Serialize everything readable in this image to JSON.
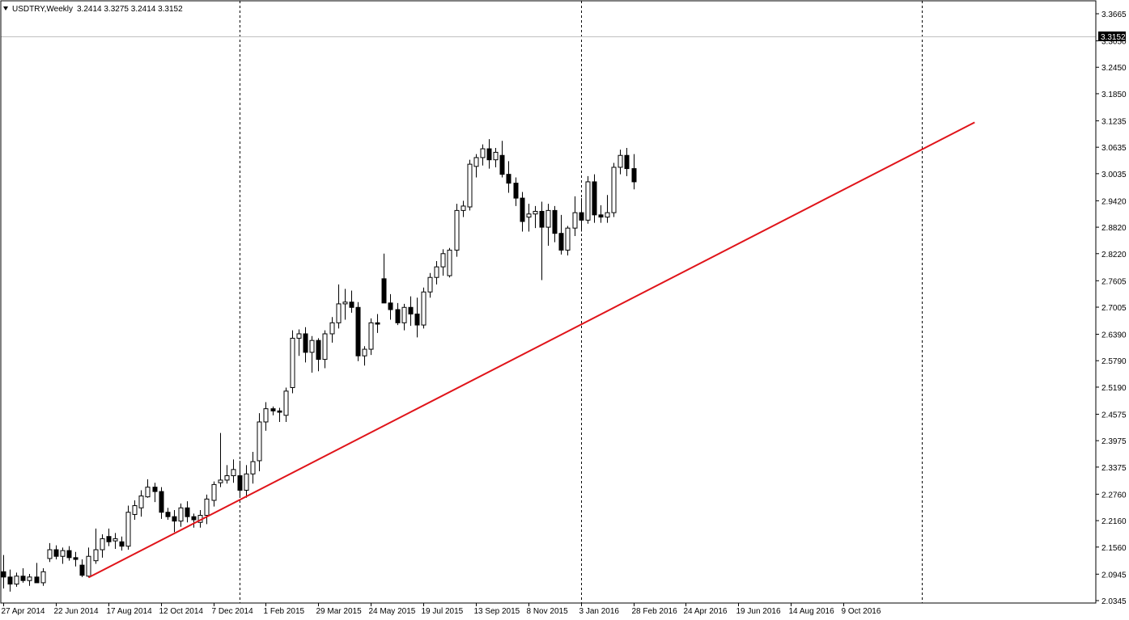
{
  "header": {
    "dropdown_icon": "triangle-down-icon",
    "symbol": "USDTRY,Weekly",
    "ohlc": "3.2414 3.3275 3.2414 3.3152"
  },
  "current_price": "3.3152",
  "colors": {
    "background": "#ffffff",
    "frame": "#000000",
    "candle_bull_body": "#ffffff",
    "candle_bear_body": "#000000",
    "candle_outline": "#000000",
    "trendline": "#e0141a",
    "price_line": "#c0c0c0",
    "price_tag_bg": "#000000",
    "price_tag_text": "#ffffff",
    "period_separator": "#000000"
  },
  "chart_data": {
    "type": "candlestick",
    "title": "",
    "xlabel": "",
    "ylabel": "",
    "ylim": [
      2.0345,
      3.3665
    ],
    "grid": false,
    "y_ticks": [
      "3.3665",
      "3.3050",
      "3.2450",
      "3.1850",
      "3.1235",
      "3.0635",
      "3.0035",
      "2.9420",
      "2.8820",
      "2.8220",
      "2.7605",
      "2.7005",
      "2.6390",
      "2.5790",
      "2.5190",
      "2.4575",
      "2.3975",
      "2.3375",
      "2.2760",
      "2.2160",
      "2.1560",
      "2.0945",
      "2.0345"
    ],
    "x_ticks": [
      {
        "label": "27 Apr 2014",
        "index": 0
      },
      {
        "label": "22 Jun 2014",
        "index": 8
      },
      {
        "label": "17 Aug 2014",
        "index": 16
      },
      {
        "label": "12 Oct 2014",
        "index": 24
      },
      {
        "label": "7 Dec 2014",
        "index": 32
      },
      {
        "label": "1 Feb 2015",
        "index": 40
      },
      {
        "label": "29 Mar 2015",
        "index": 48
      },
      {
        "label": "24 May 2015",
        "index": 56
      },
      {
        "label": "19 Jul 2015",
        "index": 64
      },
      {
        "label": "13 Sep 2015",
        "index": 72
      },
      {
        "label": "8 Nov 2015",
        "index": 80
      },
      {
        "label": "3 Jan 2016",
        "index": 88
      },
      {
        "label": "28 Feb 2016",
        "index": 96
      },
      {
        "label": "24 Apr 2016",
        "index": 104
      },
      {
        "label": "19 Jun 2016",
        "index": 112
      },
      {
        "label": "14 Aug 2016",
        "index": 120
      },
      {
        "label": "9 Oct 2016",
        "index": 128
      }
    ],
    "period_separators": [
      36,
      88,
      140
    ],
    "trendline": {
      "from": {
        "index": 13,
        "price": 2.087
      },
      "to": {
        "index": 148,
        "price": 3.12
      }
    },
    "candles": [
      {
        "o": 2.1,
        "h": 2.138,
        "l": 2.062,
        "c": 2.088
      },
      {
        "o": 2.088,
        "h": 2.105,
        "l": 2.055,
        "c": 2.072
      },
      {
        "o": 2.072,
        "h": 2.098,
        "l": 2.066,
        "c": 2.09
      },
      {
        "o": 2.09,
        "h": 2.108,
        "l": 2.075,
        "c": 2.08
      },
      {
        "o": 2.08,
        "h": 2.095,
        "l": 2.068,
        "c": 2.088
      },
      {
        "o": 2.088,
        "h": 2.12,
        "l": 2.08,
        "c": 2.075
      },
      {
        "o": 2.075,
        "h": 2.108,
        "l": 2.068,
        "c": 2.1
      },
      {
        "o": 2.13,
        "h": 2.165,
        "l": 2.122,
        "c": 2.15
      },
      {
        "o": 2.15,
        "h": 2.16,
        "l": 2.128,
        "c": 2.135
      },
      {
        "o": 2.135,
        "h": 2.155,
        "l": 2.118,
        "c": 2.148
      },
      {
        "o": 2.148,
        "h": 2.158,
        "l": 2.125,
        "c": 2.132
      },
      {
        "o": 2.132,
        "h": 2.145,
        "l": 2.112,
        "c": 2.128
      },
      {
        "o": 2.115,
        "h": 2.128,
        "l": 2.088,
        "c": 2.092
      },
      {
        "o": 2.09,
        "h": 2.155,
        "l": 2.087,
        "c": 2.135
      },
      {
        "o": 2.125,
        "h": 2.198,
        "l": 2.118,
        "c": 2.15
      },
      {
        "o": 2.15,
        "h": 2.185,
        "l": 2.132,
        "c": 2.175
      },
      {
        "o": 2.18,
        "h": 2.198,
        "l": 2.158,
        "c": 2.168
      },
      {
        "o": 2.17,
        "h": 2.188,
        "l": 2.152,
        "c": 2.175
      },
      {
        "o": 2.168,
        "h": 2.18,
        "l": 2.148,
        "c": 2.158
      },
      {
        "o": 2.158,
        "h": 2.25,
        "l": 2.15,
        "c": 2.235
      },
      {
        "o": 2.23,
        "h": 2.262,
        "l": 2.218,
        "c": 2.25
      },
      {
        "o": 2.245,
        "h": 2.285,
        "l": 2.225,
        "c": 2.272
      },
      {
        "o": 2.27,
        "h": 2.31,
        "l": 2.268,
        "c": 2.292
      },
      {
        "o": 2.292,
        "h": 2.302,
        "l": 2.258,
        "c": 2.282
      },
      {
        "o": 2.282,
        "h": 2.292,
        "l": 2.22,
        "c": 2.235
      },
      {
        "o": 2.235,
        "h": 2.245,
        "l": 2.218,
        "c": 2.225
      },
      {
        "o": 2.225,
        "h": 2.24,
        "l": 2.19,
        "c": 2.215
      },
      {
        "o": 2.215,
        "h": 2.255,
        "l": 2.202,
        "c": 2.245
      },
      {
        "o": 2.245,
        "h": 2.26,
        "l": 2.212,
        "c": 2.225
      },
      {
        "o": 2.225,
        "h": 2.232,
        "l": 2.2,
        "c": 2.218
      },
      {
        "o": 2.212,
        "h": 2.24,
        "l": 2.2,
        "c": 2.228
      },
      {
        "o": 2.228,
        "h": 2.275,
        "l": 2.208,
        "c": 2.265
      },
      {
        "o": 2.262,
        "h": 2.305,
        "l": 2.248,
        "c": 2.298
      },
      {
        "o": 2.302,
        "h": 2.415,
        "l": 2.292,
        "c": 2.308
      },
      {
        "o": 2.308,
        "h": 2.342,
        "l": 2.3,
        "c": 2.318
      },
      {
        "o": 2.318,
        "h": 2.355,
        "l": 2.302,
        "c": 2.332
      },
      {
        "o": 2.318,
        "h": 2.352,
        "l": 2.27,
        "c": 2.285
      },
      {
        "o": 2.285,
        "h": 2.342,
        "l": 2.268,
        "c": 2.322
      },
      {
        "o": 2.322,
        "h": 2.372,
        "l": 2.3,
        "c": 2.35
      },
      {
        "o": 2.352,
        "h": 2.46,
        "l": 2.328,
        "c": 2.44
      },
      {
        "o": 2.44,
        "h": 2.485,
        "l": 2.42,
        "c": 2.47
      },
      {
        "o": 2.47,
        "h": 2.475,
        "l": 2.455,
        "c": 2.465
      },
      {
        "o": 2.465,
        "h": 2.472,
        "l": 2.44,
        "c": 2.462
      },
      {
        "o": 2.455,
        "h": 2.518,
        "l": 2.44,
        "c": 2.51
      },
      {
        "o": 2.518,
        "h": 2.648,
        "l": 2.505,
        "c": 2.63
      },
      {
        "o": 2.63,
        "h": 2.65,
        "l": 2.59,
        "c": 2.64
      },
      {
        "o": 2.64,
        "h": 2.655,
        "l": 2.575,
        "c": 2.598
      },
      {
        "o": 2.598,
        "h": 2.635,
        "l": 2.552,
        "c": 2.625
      },
      {
        "o": 2.625,
        "h": 2.63,
        "l": 2.555,
        "c": 2.582
      },
      {
        "o": 2.582,
        "h": 2.648,
        "l": 2.562,
        "c": 2.64
      },
      {
        "o": 2.64,
        "h": 2.678,
        "l": 2.62,
        "c": 2.665
      },
      {
        "o": 2.665,
        "h": 2.752,
        "l": 2.652,
        "c": 2.708
      },
      {
        "o": 2.708,
        "h": 2.742,
        "l": 2.672,
        "c": 2.712
      },
      {
        "o": 2.712,
        "h": 2.738,
        "l": 2.688,
        "c": 2.7
      },
      {
        "o": 2.7,
        "h": 2.712,
        "l": 2.578,
        "c": 2.59
      },
      {
        "o": 2.59,
        "h": 2.612,
        "l": 2.568,
        "c": 2.605
      },
      {
        "o": 2.605,
        "h": 2.675,
        "l": 2.592,
        "c": 2.665
      },
      {
        "o": 2.665,
        "h": 2.685,
        "l": 2.642,
        "c": 2.662
      },
      {
        "o": 2.765,
        "h": 2.822,
        "l": 2.712,
        "c": 2.71
      },
      {
        "o": 2.71,
        "h": 2.73,
        "l": 2.672,
        "c": 2.695
      },
      {
        "o": 2.695,
        "h": 2.71,
        "l": 2.66,
        "c": 2.665
      },
      {
        "o": 2.665,
        "h": 2.708,
        "l": 2.648,
        "c": 2.7
      },
      {
        "o": 2.7,
        "h": 2.725,
        "l": 2.658,
        "c": 2.685
      },
      {
        "o": 2.685,
        "h": 2.722,
        "l": 2.632,
        "c": 2.66
      },
      {
        "o": 2.66,
        "h": 2.745,
        "l": 2.652,
        "c": 2.735
      },
      {
        "o": 2.735,
        "h": 2.778,
        "l": 2.722,
        "c": 2.768
      },
      {
        "o": 2.768,
        "h": 2.805,
        "l": 2.752,
        "c": 2.792
      },
      {
        "o": 2.792,
        "h": 2.832,
        "l": 2.772,
        "c": 2.822
      },
      {
        "o": 2.772,
        "h": 2.835,
        "l": 2.768,
        "c": 2.83
      },
      {
        "o": 2.83,
        "h": 2.935,
        "l": 2.815,
        "c": 2.92
      },
      {
        "o": 2.92,
        "h": 2.942,
        "l": 2.905,
        "c": 2.93
      },
      {
        "o": 2.928,
        "h": 3.035,
        "l": 2.92,
        "c": 3.025
      },
      {
        "o": 3.02,
        "h": 3.048,
        "l": 2.995,
        "c": 3.04
      },
      {
        "o": 3.04,
        "h": 3.07,
        "l": 3.022,
        "c": 3.06
      },
      {
        "o": 3.06,
        "h": 3.082,
        "l": 3.015,
        "c": 3.035
      },
      {
        "o": 3.035,
        "h": 3.062,
        "l": 3.018,
        "c": 3.052
      },
      {
        "o": 3.045,
        "h": 3.078,
        "l": 2.995,
        "c": 3.002
      },
      {
        "o": 3.002,
        "h": 3.032,
        "l": 2.96,
        "c": 2.982
      },
      {
        "o": 2.982,
        "h": 2.995,
        "l": 2.93,
        "c": 2.948
      },
      {
        "o": 2.948,
        "h": 2.962,
        "l": 2.872,
        "c": 2.895
      },
      {
        "o": 2.905,
        "h": 2.935,
        "l": 2.872,
        "c": 2.912
      },
      {
        "o": 2.912,
        "h": 2.93,
        "l": 2.88,
        "c": 2.918
      },
      {
        "o": 2.918,
        "h": 2.94,
        "l": 2.762,
        "c": 2.882
      },
      {
        "o": 2.882,
        "h": 2.935,
        "l": 2.84,
        "c": 2.92
      },
      {
        "o": 2.92,
        "h": 2.93,
        "l": 2.848,
        "c": 2.868
      },
      {
        "o": 2.868,
        "h": 2.91,
        "l": 2.82,
        "c": 2.83
      },
      {
        "o": 2.83,
        "h": 2.885,
        "l": 2.818,
        "c": 2.88
      },
      {
        "o": 2.88,
        "h": 2.952,
        "l": 2.862,
        "c": 2.915
      },
      {
        "o": 2.915,
        "h": 2.948,
        "l": 2.872,
        "c": 2.898
      },
      {
        "o": 2.898,
        "h": 2.998,
        "l": 2.89,
        "c": 2.985
      },
      {
        "o": 2.985,
        "h": 3.002,
        "l": 2.892,
        "c": 2.91
      },
      {
        "o": 2.91,
        "h": 2.932,
        "l": 2.892,
        "c": 2.905
      },
      {
        "o": 2.905,
        "h": 2.955,
        "l": 2.892,
        "c": 2.915
      },
      {
        "o": 2.915,
        "h": 3.028,
        "l": 2.905,
        "c": 3.018
      },
      {
        "o": 3.018,
        "h": 3.058,
        "l": 3.002,
        "c": 3.045
      },
      {
        "o": 3.045,
        "h": 3.062,
        "l": 2.998,
        "c": 3.015
      },
      {
        "o": 3.015,
        "h": 3.048,
        "l": 2.968,
        "c": 2.985
      }
    ]
  }
}
